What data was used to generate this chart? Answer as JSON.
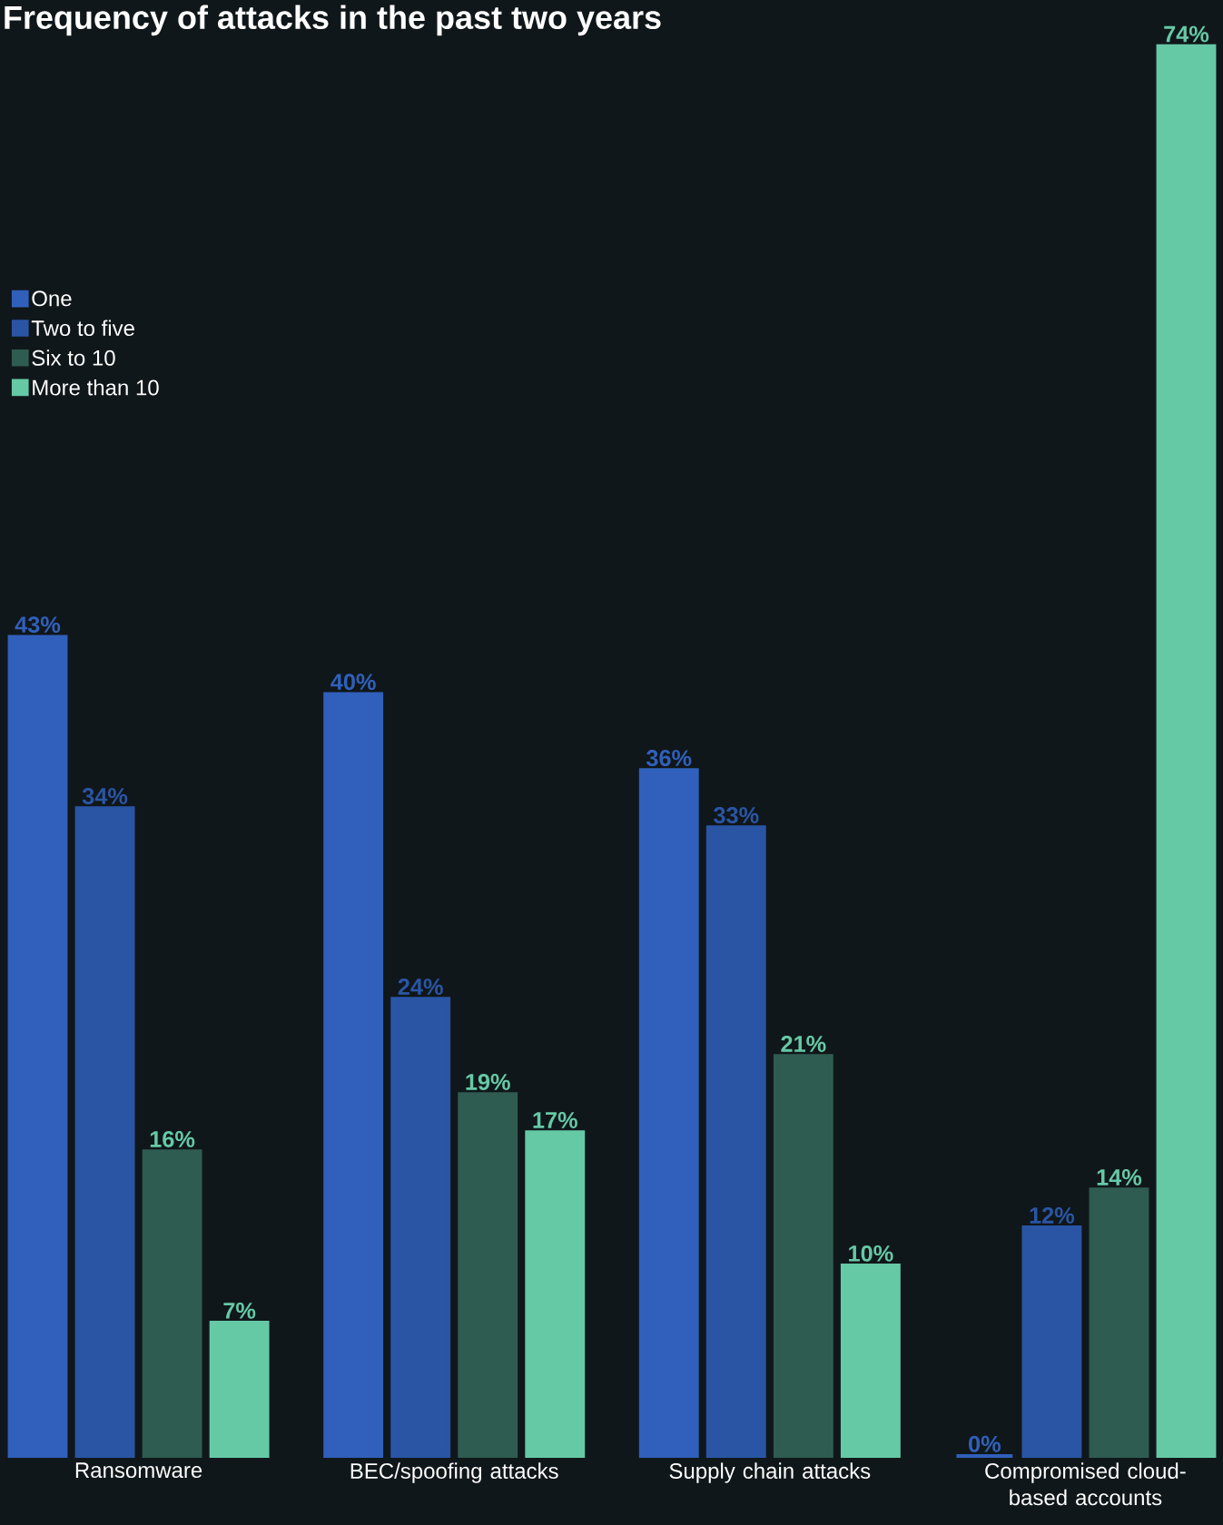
{
  "chart_data": {
    "type": "bar",
    "title": "Frequency of attacks in the past two years",
    "categories": [
      "Ransomware",
      "BEC/spoofing attacks",
      "Supply chain attacks",
      "Compromised cloud-based accounts"
    ],
    "series": [
      {
        "name": "One",
        "color": "#3060bb",
        "values": [
          43,
          40,
          36,
          0
        ],
        "value_labels": [
          "43%",
          "40%",
          "36%",
          "0%"
        ]
      },
      {
        "name": "Two to five",
        "color": "#2a55a5",
        "values": [
          34,
          24,
          33,
          12
        ],
        "value_labels": [
          "34%",
          "24%",
          "33%",
          "12%"
        ]
      },
      {
        "name": "Six to 10",
        "color": "#2f5c50",
        "values": [
          16,
          19,
          21,
          14
        ],
        "value_labels": [
          "16%",
          "19%",
          "21%",
          "14%"
        ]
      },
      {
        "name": "More than 10",
        "color": "#66c9a6",
        "values": [
          7,
          17,
          10,
          74
        ],
        "value_labels": [
          "7%",
          "17%",
          "10%",
          "74%"
        ]
      }
    ],
    "ylim": [
      0,
      74
    ],
    "legend": "top left",
    "tick_labels": "x"
  }
}
